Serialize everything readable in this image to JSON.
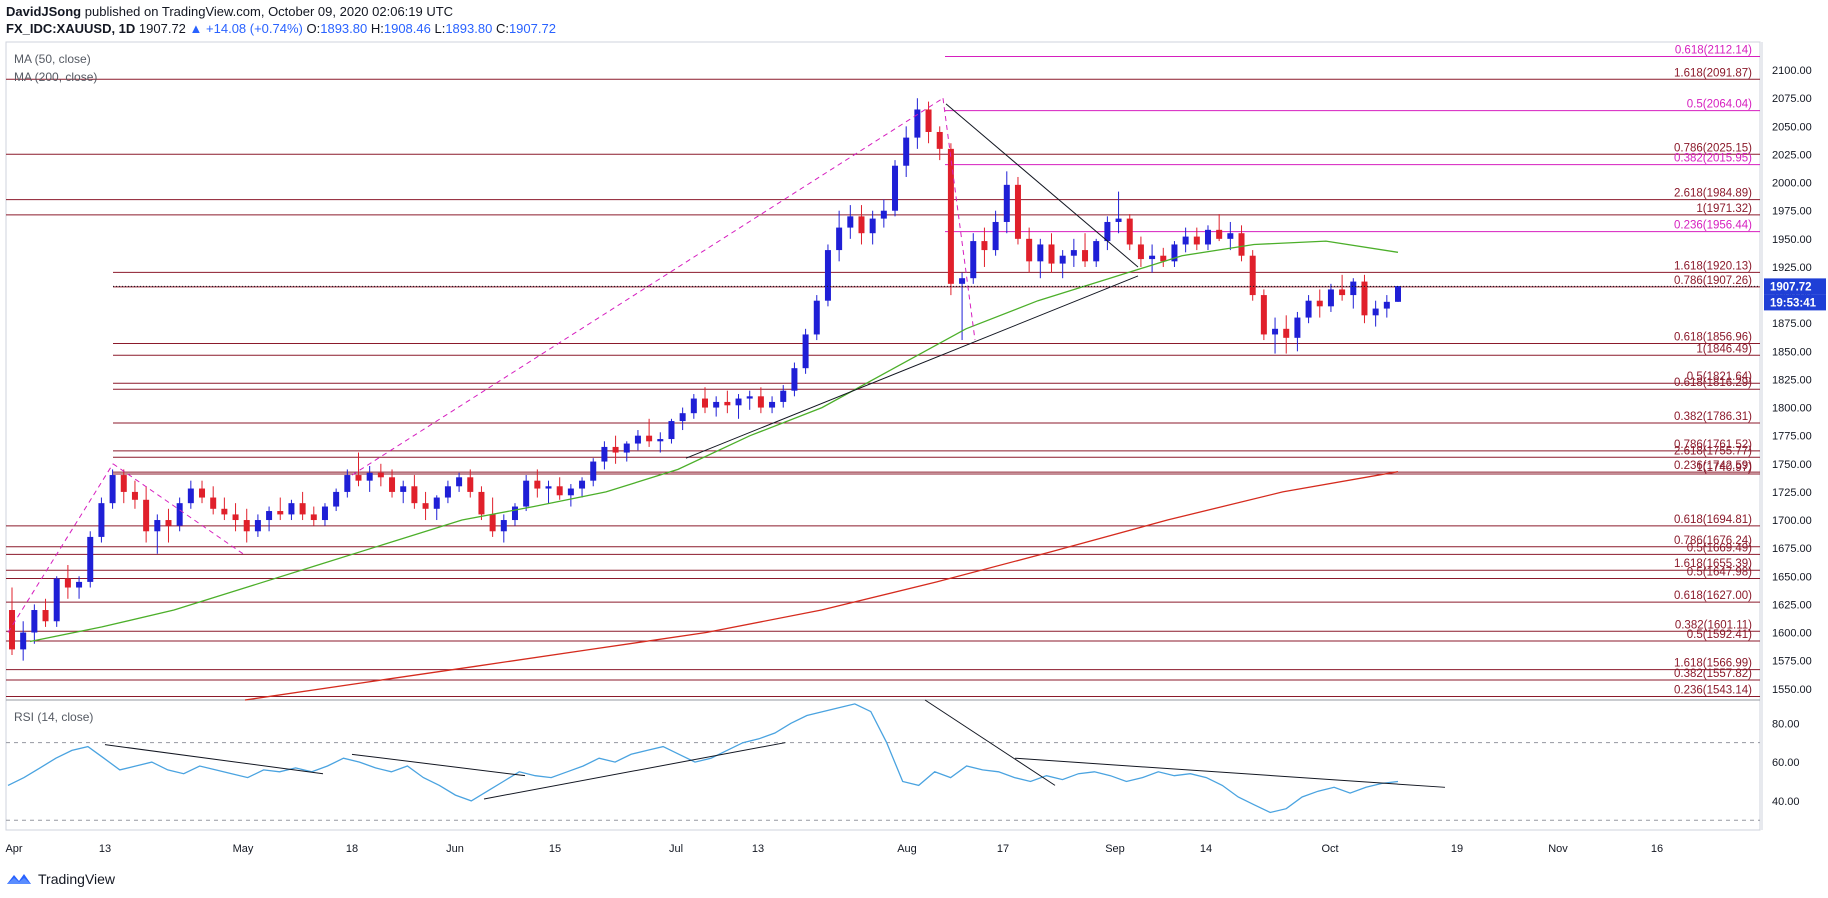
{
  "header": {
    "author": "DavidJSong",
    "published": "published on TradingView.com, October 09, 2020 02:06:19 UTC",
    "symbol": "FX_IDC:XAUUSD, 1D",
    "last": "1907.72",
    "change": "▲ +14.08 (+0.74%)",
    "o_label": "O:",
    "o": "1893.80",
    "h_label": "H:",
    "h": "1908.46",
    "l_label": "L:",
    "l": "1893.80",
    "c_label": "C:",
    "c": "1907.72"
  },
  "colors": {
    "up": "#1f1fd6",
    "down": "#e0202b",
    "ma50": "#4caf2a",
    "ma200": "#d52b1e",
    "fib_dark": "#8b1a2b",
    "fib_pink": "#d61fbf",
    "rsi": "#4aa3e0"
  },
  "footer": {
    "brand": "TradingView"
  },
  "chart_data": {
    "type": "candlestick",
    "indicators": [
      "MA (50, close)",
      "MA (200, close)"
    ],
    "ylim": [
      1540,
      2125
    ],
    "y_ticks": [
      "2100.00",
      "2075.00",
      "2050.00",
      "2025.00",
      "2000.00",
      "1975.00",
      "1950.00",
      "1925.00",
      "1900.00",
      "1875.00",
      "1850.00",
      "1825.00",
      "1800.00",
      "1775.00",
      "1750.00",
      "1725.00",
      "1700.00",
      "1675.00",
      "1650.00",
      "1625.00",
      "1600.00",
      "1575.00",
      "1550.00"
    ],
    "x_ticks": [
      "Apr",
      "13",
      "May",
      "18",
      "Jun",
      "15",
      "Jul",
      "13",
      "Aug",
      "17",
      "Sep",
      "14",
      "Oct",
      "19",
      "Nov",
      "16"
    ],
    "current_price_label": "1907.72",
    "countdown_label": "19:53:41",
    "fib_levels": [
      {
        "label": "0.618(2112.14)",
        "value": 2112.14,
        "color": "pink"
      },
      {
        "label": "1.618(2091.87)",
        "value": 2091.87,
        "color": "dark"
      },
      {
        "label": "0.5(2064.04)",
        "value": 2064.04,
        "color": "pink"
      },
      {
        "label": "0.786(2025.15)",
        "value": 2025.15,
        "color": "dark"
      },
      {
        "label": "0.382(2015.95)",
        "value": 2015.95,
        "color": "pink"
      },
      {
        "label": "2.618(1984.89)",
        "value": 1984.89,
        "color": "dark"
      },
      {
        "label": "1(1971.32)",
        "value": 1971.32,
        "color": "dark"
      },
      {
        "label": "0.236(1956.44)",
        "value": 1956.44,
        "color": "pink"
      },
      {
        "label": "1.618(1920.13)",
        "value": 1920.13,
        "color": "dark"
      },
      {
        "label": "0.786(1907.26)",
        "value": 1907.26,
        "color": "dark"
      },
      {
        "label": "0.618(1856.96)",
        "value": 1856.96,
        "color": "dark"
      },
      {
        "label": "1(1846.49)",
        "value": 1846.49,
        "color": "dark"
      },
      {
        "label": "0.5(1821.64)",
        "value": 1821.64,
        "color": "dark"
      },
      {
        "label": "0.618(1816.29)",
        "value": 1816.29,
        "color": "dark"
      },
      {
        "label": "0.382(1786.31)",
        "value": 1786.31,
        "color": "dark"
      },
      {
        "label": "0.786(1761.52)",
        "value": 1761.52,
        "color": "dark"
      },
      {
        "label": "2.618(1755.77)",
        "value": 1755.77,
        "color": "dark"
      },
      {
        "label": "0.236(1742.59)",
        "value": 1742.59,
        "color": "dark"
      },
      {
        "label": "1(1740.97)",
        "value": 1740.97,
        "color": "dark"
      },
      {
        "label": "0.618(1694.81)",
        "value": 1694.81,
        "color": "dark"
      },
      {
        "label": "0.786(1676.24)",
        "value": 1676.24,
        "color": "dark"
      },
      {
        "label": "0.5(1669.49)",
        "value": 1669.49,
        "color": "dark"
      },
      {
        "label": "1.618(1655.39)",
        "value": 1655.39,
        "color": "dark"
      },
      {
        "label": "0.5(1647.98)",
        "value": 1647.98,
        "color": "dark"
      },
      {
        "label": "0.618(1627.00)",
        "value": 1627.0,
        "color": "dark"
      },
      {
        "label": "0.382(1601.11)",
        "value": 1601.11,
        "color": "dark"
      },
      {
        "label": "0.5(1592.41)",
        "value": 1592.41,
        "color": "dark"
      },
      {
        "label": "1.618(1566.99)",
        "value": 1566.99,
        "color": "dark"
      },
      {
        "label": "0.382(1557.82)",
        "value": 1557.82,
        "color": "dark"
      },
      {
        "label": "0.236(1543.14)",
        "value": 1543.14,
        "color": "dark"
      }
    ],
    "candles_ohlc": [
      [
        1620,
        1640,
        1580,
        1585
      ],
      [
        1585,
        1610,
        1575,
        1600
      ],
      [
        1600,
        1625,
        1590,
        1620
      ],
      [
        1620,
        1630,
        1605,
        1610
      ],
      [
        1610,
        1650,
        1605,
        1648
      ],
      [
        1648,
        1660,
        1630,
        1640
      ],
      [
        1640,
        1650,
        1630,
        1645
      ],
      [
        1645,
        1690,
        1640,
        1685
      ],
      [
        1685,
        1720,
        1680,
        1715
      ],
      [
        1715,
        1745,
        1710,
        1740
      ],
      [
        1740,
        1745,
        1715,
        1725
      ],
      [
        1725,
        1735,
        1710,
        1718
      ],
      [
        1718,
        1730,
        1680,
        1690
      ],
      [
        1690,
        1705,
        1670,
        1700
      ],
      [
        1700,
        1710,
        1680,
        1695
      ],
      [
        1695,
        1720,
        1690,
        1715
      ],
      [
        1715,
        1735,
        1710,
        1728
      ],
      [
        1728,
        1735,
        1715,
        1720
      ],
      [
        1720,
        1730,
        1705,
        1710
      ],
      [
        1710,
        1720,
        1700,
        1705
      ],
      [
        1705,
        1715,
        1690,
        1700
      ],
      [
        1700,
        1710,
        1680,
        1690
      ],
      [
        1690,
        1705,
        1685,
        1700
      ],
      [
        1700,
        1712,
        1690,
        1708
      ],
      [
        1708,
        1720,
        1700,
        1705
      ],
      [
        1705,
        1718,
        1700,
        1715
      ],
      [
        1715,
        1725,
        1700,
        1705
      ],
      [
        1705,
        1712,
        1695,
        1700
      ],
      [
        1700,
        1715,
        1695,
        1712
      ],
      [
        1712,
        1728,
        1708,
        1725
      ],
      [
        1725,
        1745,
        1720,
        1740
      ],
      [
        1740,
        1760,
        1730,
        1735
      ],
      [
        1735,
        1748,
        1725,
        1742
      ],
      [
        1742,
        1750,
        1730,
        1738
      ],
      [
        1738,
        1745,
        1720,
        1725
      ],
      [
        1725,
        1735,
        1715,
        1730
      ],
      [
        1730,
        1740,
        1710,
        1715
      ],
      [
        1715,
        1725,
        1700,
        1710
      ],
      [
        1710,
        1722,
        1700,
        1720
      ],
      [
        1720,
        1735,
        1715,
        1730
      ],
      [
        1730,
        1742,
        1725,
        1738
      ],
      [
        1738,
        1745,
        1720,
        1725
      ],
      [
        1725,
        1730,
        1700,
        1705
      ],
      [
        1705,
        1720,
        1685,
        1690
      ],
      [
        1690,
        1705,
        1680,
        1700
      ],
      [
        1700,
        1715,
        1695,
        1712
      ],
      [
        1712,
        1740,
        1708,
        1735
      ],
      [
        1735,
        1745,
        1720,
        1728
      ],
      [
        1728,
        1735,
        1715,
        1730
      ],
      [
        1730,
        1738,
        1718,
        1722
      ],
      [
        1722,
        1732,
        1712,
        1728
      ],
      [
        1728,
        1738,
        1720,
        1735
      ],
      [
        1735,
        1755,
        1730,
        1752
      ],
      [
        1752,
        1770,
        1745,
        1765
      ],
      [
        1765,
        1775,
        1750,
        1760
      ],
      [
        1760,
        1770,
        1752,
        1768
      ],
      [
        1768,
        1780,
        1762,
        1775
      ],
      [
        1775,
        1790,
        1765,
        1770
      ],
      [
        1770,
        1778,
        1760,
        1772
      ],
      [
        1772,
        1790,
        1768,
        1788
      ],
      [
        1788,
        1800,
        1780,
        1795
      ],
      [
        1795,
        1812,
        1790,
        1808
      ],
      [
        1808,
        1818,
        1795,
        1800
      ],
      [
        1800,
        1810,
        1792,
        1805
      ],
      [
        1805,
        1815,
        1795,
        1802
      ],
      [
        1802,
        1812,
        1790,
        1808
      ],
      [
        1808,
        1815,
        1798,
        1810
      ],
      [
        1810,
        1818,
        1795,
        1800
      ],
      [
        1800,
        1810,
        1795,
        1805
      ],
      [
        1805,
        1820,
        1800,
        1815
      ],
      [
        1815,
        1840,
        1810,
        1835
      ],
      [
        1835,
        1870,
        1830,
        1865
      ],
      [
        1865,
        1900,
        1860,
        1895
      ],
      [
        1895,
        1945,
        1890,
        1940
      ],
      [
        1940,
        1975,
        1930,
        1960
      ],
      [
        1960,
        1980,
        1950,
        1970
      ],
      [
        1970,
        1980,
        1945,
        1955
      ],
      [
        1955,
        1975,
        1945,
        1968
      ],
      [
        1968,
        1985,
        1960,
        1975
      ],
      [
        1975,
        2020,
        1970,
        2015
      ],
      [
        2015,
        2050,
        2005,
        2040
      ],
      [
        2040,
        2075,
        2030,
        2065
      ],
      [
        2065,
        2072,
        2035,
        2045
      ],
      [
        2045,
        2050,
        2020,
        2030
      ],
      [
        2030,
        2035,
        1900,
        1910
      ],
      [
        1910,
        1920,
        1860,
        1915
      ],
      [
        1915,
        1955,
        1910,
        1948
      ],
      [
        1948,
        1960,
        1925,
        1940
      ],
      [
        1940,
        1975,
        1935,
        1965
      ],
      [
        1965,
        2010,
        1955,
        1998
      ],
      [
        1998,
        2005,
        1945,
        1950
      ],
      [
        1950,
        1960,
        1920,
        1930
      ],
      [
        1930,
        1950,
        1915,
        1945
      ],
      [
        1945,
        1955,
        1920,
        1928
      ],
      [
        1928,
        1940,
        1915,
        1935
      ],
      [
        1935,
        1950,
        1925,
        1940
      ],
      [
        1940,
        1955,
        1925,
        1930
      ],
      [
        1930,
        1950,
        1925,
        1948
      ],
      [
        1948,
        1970,
        1940,
        1965
      ],
      [
        1965,
        1992,
        1955,
        1968
      ],
      [
        1968,
        1972,
        1940,
        1945
      ],
      [
        1945,
        1952,
        1925,
        1932
      ],
      [
        1932,
        1945,
        1920,
        1935
      ],
      [
        1935,
        1942,
        1925,
        1930
      ],
      [
        1930,
        1948,
        1925,
        1945
      ],
      [
        1945,
        1960,
        1938,
        1952
      ],
      [
        1952,
        1960,
        1940,
        1945
      ],
      [
        1945,
        1962,
        1940,
        1958
      ],
      [
        1958,
        1972,
        1948,
        1950
      ],
      [
        1950,
        1965,
        1940,
        1955
      ],
      [
        1955,
        1962,
        1930,
        1935
      ],
      [
        1935,
        1940,
        1895,
        1900
      ],
      [
        1900,
        1905,
        1860,
        1865
      ],
      [
        1865,
        1880,
        1848,
        1870
      ],
      [
        1870,
        1882,
        1848,
        1862
      ],
      [
        1862,
        1885,
        1850,
        1880
      ],
      [
        1880,
        1900,
        1875,
        1895
      ],
      [
        1895,
        1905,
        1880,
        1890
      ],
      [
        1890,
        1910,
        1885,
        1905
      ],
      [
        1905,
        1918,
        1895,
        1900
      ],
      [
        1900,
        1915,
        1888,
        1912
      ],
      [
        1912,
        1918,
        1875,
        1882
      ],
      [
        1882,
        1895,
        1872,
        1888
      ],
      [
        1888,
        1900,
        1880,
        1894
      ],
      [
        1894,
        1908,
        1894,
        1908
      ]
    ],
    "ma50": [
      1592,
      1605,
      1620,
      1640,
      1660,
      1680,
      1700,
      1712,
      1725,
      1745,
      1775,
      1800,
      1835,
      1870,
      1895,
      1915,
      1935,
      1945,
      1948,
      1938
    ],
    "ma200": [
      1540,
      1555,
      1570,
      1585,
      1600,
      1620,
      1645,
      1672,
      1700,
      1725,
      1743
    ],
    "rsi": {
      "label": "RSI (14, close)",
      "ticks": [
        "80.00",
        "60.00",
        "40.00"
      ],
      "ylim": [
        25,
        92
      ],
      "bands": [
        70,
        30
      ],
      "values": [
        48,
        52,
        57,
        62,
        66,
        68,
        62,
        56,
        58,
        60,
        56,
        54,
        58,
        56,
        54,
        52,
        56,
        55,
        57,
        55,
        58,
        62,
        60,
        57,
        55,
        58,
        52,
        48,
        43,
        40,
        45,
        50,
        55,
        53,
        52,
        55,
        58,
        62,
        60,
        64,
        66,
        68,
        64,
        60,
        62,
        66,
        70,
        72,
        75,
        80,
        84,
        86,
        88,
        90,
        86,
        70,
        50,
        48,
        55,
        52,
        58,
        56,
        55,
        52,
        50,
        53,
        51,
        54,
        55,
        53,
        50,
        52,
        55,
        53,
        54,
        52,
        48,
        42,
        38,
        34,
        36,
        42,
        45,
        47,
        44,
        47,
        49,
        50
      ]
    }
  }
}
